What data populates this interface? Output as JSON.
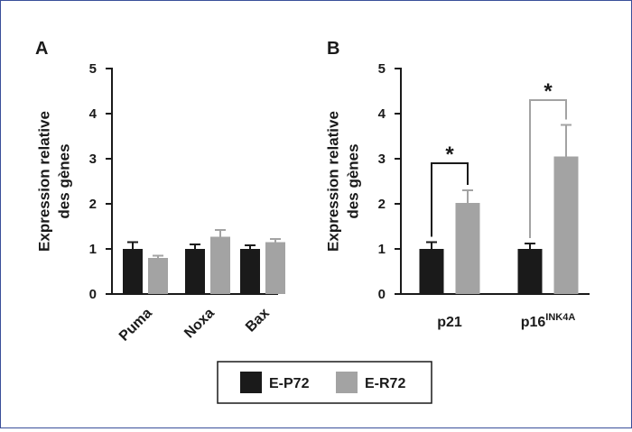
{
  "colors": {
    "frame": "#3a4f9a",
    "E-P72": "#1a1a1a",
    "E-R72": "#a3a3a3",
    "axis": "#1a1a1a",
    "bracket_A": "#1a1a1a",
    "bracket_B": "#a3a3a3"
  },
  "chart_data": [
    {
      "type": "bar",
      "panel": "A",
      "ylabel": [
        "Expression relative",
        "des gènes"
      ],
      "ylim": [
        0,
        5
      ],
      "yticks": [
        0,
        1,
        2,
        3,
        4,
        5
      ],
      "categories": [
        "Puma",
        "Noxa",
        "Bax"
      ],
      "xtick_rotation": -45,
      "series": [
        {
          "name": "E-P72",
          "values": [
            1.0,
            1.0,
            1.0
          ],
          "errors": [
            0.15,
            0.1,
            0.08
          ]
        },
        {
          "name": "E-R72",
          "values": [
            0.8,
            1.27,
            1.15
          ],
          "errors": [
            0.05,
            0.15,
            0.07
          ]
        }
      ],
      "significance": []
    },
    {
      "type": "bar",
      "panel": "B",
      "ylabel": [
        "Expression relative",
        "des gènes"
      ],
      "ylim": [
        0,
        5
      ],
      "yticks": [
        0,
        1,
        2,
        3,
        4,
        5
      ],
      "categories": [
        {
          "label": "p21",
          "sup": ""
        },
        {
          "label": "p16",
          "sup": "INK4A"
        }
      ],
      "series": [
        {
          "name": "E-P72",
          "values": [
            1.0,
            1.0
          ],
          "errors": [
            0.15,
            0.12
          ]
        },
        {
          "name": "E-R72",
          "values": [
            2.02,
            3.05
          ],
          "errors": [
            0.28,
            0.7
          ]
        }
      ],
      "significance": [
        {
          "category": 0,
          "label": "*",
          "bracket_y": 2.9,
          "color_key": "bracket_A"
        },
        {
          "category": 1,
          "label": "*",
          "bracket_y": 4.3,
          "color_key": "bracket_B"
        }
      ]
    }
  ],
  "legend": {
    "items": [
      {
        "label": "E-P72",
        "color_key": "E-P72"
      },
      {
        "label": "E-R72",
        "color_key": "E-R72"
      }
    ]
  }
}
